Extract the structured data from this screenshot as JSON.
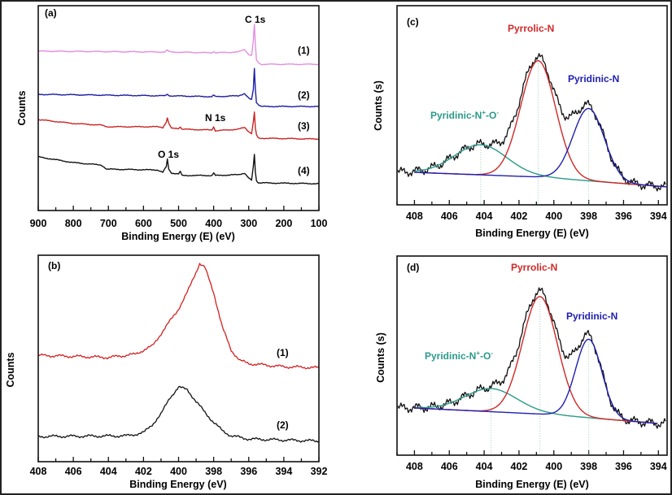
{
  "chart_data": [
    {
      "panel": "(a)",
      "type": "line",
      "xlabel": "Binding Energy (E) (eV)",
      "ylabel": "Counts",
      "xlim": [
        900,
        100
      ],
      "xticks": [
        900,
        800,
        700,
        600,
        500,
        400,
        300,
        200,
        100
      ],
      "ylim": [
        0,
        100
      ],
      "annotations": [
        "C 1s",
        "N 1s",
        "O 1s"
      ],
      "series": [
        {
          "name": "(1)",
          "color": "#e48ee0",
          "points": [
            [
              900,
              77.8
            ],
            [
              540,
              77.4
            ],
            [
              532,
              78.2
            ],
            [
              525,
              77.4
            ],
            [
              405,
              77.0
            ],
            [
              400,
              77.8
            ],
            [
              395,
              77.0
            ],
            [
              330,
              77.4
            ],
            [
              312,
              78.6
            ],
            [
              300,
              76.2
            ],
            [
              292,
              75.8
            ],
            [
              287,
              82.9
            ],
            [
              284,
              90.9
            ],
            [
              281,
              81.0
            ],
            [
              278,
              73.4
            ],
            [
              272,
              72.2
            ],
            [
              265,
              71.4
            ],
            [
              100,
              71.4
            ]
          ]
        },
        {
          "name": "(2)",
          "color": "#1c1ca6",
          "points": [
            [
              900,
              56.7
            ],
            [
              540,
              56.0
            ],
            [
              532,
              56.7
            ],
            [
              525,
              56.0
            ],
            [
              405,
              55.6
            ],
            [
              400,
              56.3
            ],
            [
              395,
              55.6
            ],
            [
              330,
              56.0
            ],
            [
              312,
              57.1
            ],
            [
              300,
              54.8
            ],
            [
              292,
              54.0
            ],
            [
              287,
              59.1
            ],
            [
              284,
              69.4
            ],
            [
              281,
              59.1
            ],
            [
              278,
              52.8
            ],
            [
              272,
              51.6
            ],
            [
              265,
              50.8
            ],
            [
              100,
              50.8
            ]
          ]
        },
        {
          "name": "(3)",
          "color": "#cc2424",
          "points": [
            [
              900,
              44.4
            ],
            [
              800,
              42.5
            ],
            [
              720,
              41.7
            ],
            [
              705,
              40.9
            ],
            [
              560,
              40.9
            ],
            [
              545,
              40.5
            ],
            [
              535,
              43.3
            ],
            [
              532,
              45.2
            ],
            [
              528,
              42.5
            ],
            [
              520,
              40.1
            ],
            [
              500,
              40.1
            ],
            [
              495,
              40.9
            ],
            [
              490,
              39.7
            ],
            [
              405,
              39.3
            ],
            [
              400,
              40.9
            ],
            [
              395,
              38.9
            ],
            [
              330,
              39.7
            ],
            [
              312,
              40.5
            ],
            [
              300,
              38.5
            ],
            [
              292,
              37.7
            ],
            [
              287,
              43.3
            ],
            [
              284,
              48.0
            ],
            [
              281,
              40.1
            ],
            [
              278,
              36.9
            ],
            [
              272,
              35.3
            ],
            [
              100,
              34.9
            ]
          ]
        },
        {
          "name": "(4)",
          "color": "#111111",
          "points": [
            [
              900,
              26.2
            ],
            [
              800,
              23.4
            ],
            [
              720,
              22.2
            ],
            [
              705,
              20.2
            ],
            [
              560,
              19.8
            ],
            [
              545,
              18.7
            ],
            [
              535,
              21.4
            ],
            [
              532,
              25.0
            ],
            [
              528,
              20.2
            ],
            [
              520,
              18.3
            ],
            [
              500,
              17.9
            ],
            [
              495,
              19.0
            ],
            [
              490,
              17.1
            ],
            [
              405,
              17.1
            ],
            [
              400,
              18.3
            ],
            [
              395,
              17.1
            ],
            [
              330,
              17.5
            ],
            [
              312,
              18.3
            ],
            [
              300,
              15.9
            ],
            [
              292,
              14.7
            ],
            [
              287,
              21.4
            ],
            [
              284,
              27.4
            ],
            [
              281,
              18.7
            ],
            [
              278,
              14.7
            ],
            [
              272,
              13.5
            ],
            [
              100,
              13.1
            ]
          ]
        }
      ]
    },
    {
      "panel": "(b)",
      "type": "line",
      "xlabel": "Binding Energy (eV)",
      "ylabel": "Counts",
      "xlim": [
        408,
        392
      ],
      "xticks": [
        408,
        406,
        404,
        402,
        400,
        398,
        396,
        394,
        392
      ],
      "ylim": [
        0,
        100
      ],
      "series": [
        {
          "name": "(1)",
          "color": "#d42020",
          "points": [
            [
              408,
              51.5
            ],
            [
              404,
              50.5
            ],
            [
              402.5,
              52
            ],
            [
              401.5,
              56
            ],
            [
              400.5,
              68
            ],
            [
              400,
              74
            ],
            [
              399.5,
              82
            ],
            [
              399,
              92
            ],
            [
              398.8,
              96
            ],
            [
              398.5,
              94
            ],
            [
              398,
              82
            ],
            [
              397.5,
              65
            ],
            [
              397,
              54
            ],
            [
              396.5,
              49
            ],
            [
              396,
              47.5
            ],
            [
              394,
              46
            ],
            [
              392,
              45.5
            ]
          ]
        },
        {
          "name": "(2)",
          "color": "#111111",
          "points": [
            [
              408,
              12.2
            ],
            [
              403,
              12.5
            ],
            [
              402,
              14
            ],
            [
              401.5,
              18
            ],
            [
              401,
              23
            ],
            [
              400.5,
              31
            ],
            [
              400,
              36
            ],
            [
              399.5,
              35
            ],
            [
              399,
              29
            ],
            [
              398.5,
              24
            ],
            [
              398,
              19
            ],
            [
              397.5,
              15
            ],
            [
              397,
              12.5
            ],
            [
              396,
              11
            ],
            [
              392,
              10
            ]
          ]
        }
      ]
    },
    {
      "panel": "(c)",
      "type": "line",
      "xlabel": "Binding Energy (E) (eV)",
      "ylabel": "Counts (s)",
      "xlim": [
        409,
        393.5
      ],
      "xticks": [
        408,
        406,
        404,
        402,
        400,
        398,
        396,
        394
      ],
      "ylim": [
        0,
        100
      ],
      "background": [
        [
          408,
          16.3
        ],
        [
          400.7,
          13.9
        ],
        [
          393.5,
          9.0
        ]
      ],
      "components": [
        {
          "name": "Pyridinic-N+-O-",
          "label": [
            "Pyridinic-N",
            "+",
            "-O",
            "-"
          ],
          "color": "#2a9a8a",
          "center": 404.2,
          "height": 15.1,
          "sigma": 1.5
        },
        {
          "name": "Pyrrolic-N",
          "label": [
            "Pyrrolic-N"
          ],
          "color": "#d02828",
          "center": 400.9,
          "height": 58.4,
          "sigma": 1.0
        },
        {
          "name": "Pyridinic-N",
          "label": [
            "Pyridinic-N"
          ],
          "color": "#2020b0",
          "center": 398.0,
          "height": 36.3,
          "sigma": 0.9
        }
      ],
      "measured_color": "#111111"
    },
    {
      "panel": "(d)",
      "type": "line",
      "xlabel": "Binding Energy (E) (eV)",
      "ylabel": "Counts (s)",
      "xlim": [
        409,
        393.5
      ],
      "xticks": [
        408,
        406,
        404,
        402,
        400,
        398,
        396,
        394
      ],
      "ylim": [
        0,
        100
      ],
      "background": [
        [
          408,
          23.7
        ],
        [
          400.2,
          20.4
        ],
        [
          394,
          15.9
        ]
      ],
      "components": [
        {
          "name": "Pyridinic-N+-O-",
          "label": [
            "Pyridinic-N",
            "+",
            "-O",
            "-"
          ],
          "color": "#2a9a8a",
          "center": 403.6,
          "height": 11.6,
          "sigma": 1.5
        },
        {
          "name": "Pyrrolic-N",
          "label": [
            "Pyrrolic-N"
          ],
          "color": "#d02828",
          "center": 400.8,
          "height": 59.0,
          "sigma": 1.0
        },
        {
          "name": "Pyridinic-N",
          "label": [
            "Pyridinic-N"
          ],
          "color": "#2020b0",
          "center": 398.0,
          "height": 39.4,
          "sigma": 0.75
        }
      ],
      "measured_color": "#111111"
    }
  ]
}
